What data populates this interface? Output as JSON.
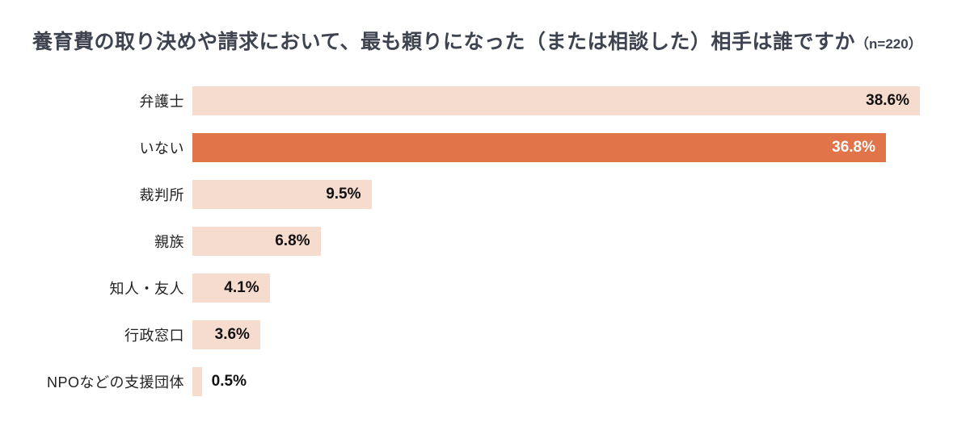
{
  "header": {
    "title": "養育費の取り決めや請求において、最も頼りになった（または相談した）相手は誰ですか",
    "sample_size": "（n=220）"
  },
  "chart_data": {
    "type": "bar",
    "orientation": "horizontal",
    "title": "養育費の取り決めや請求において、最も頼りになった（または相談した）相手は誰ですか（n=220）",
    "categories": [
      "弁護士",
      "いない",
      "裁判所",
      "親族",
      "知人・友人",
      "行政窓口",
      "NPOなどの支援団体"
    ],
    "values": [
      38.6,
      36.8,
      9.5,
      6.8,
      4.1,
      3.6,
      0.5
    ],
    "value_labels": [
      "38.6%",
      "36.8%",
      "9.5%",
      "6.8%",
      "4.1%",
      "3.6%",
      "0.5%"
    ],
    "highlight_index": 1,
    "xlim": [
      0,
      38.6
    ],
    "legend": "none",
    "grid": false,
    "colors": {
      "bar": "#f6dcce",
      "highlight": "#e2744a",
      "value_text": "#111111",
      "value_text_on_highlight": "#ffffff",
      "title_text": "#3d4450"
    },
    "outside_label_threshold": 2
  }
}
